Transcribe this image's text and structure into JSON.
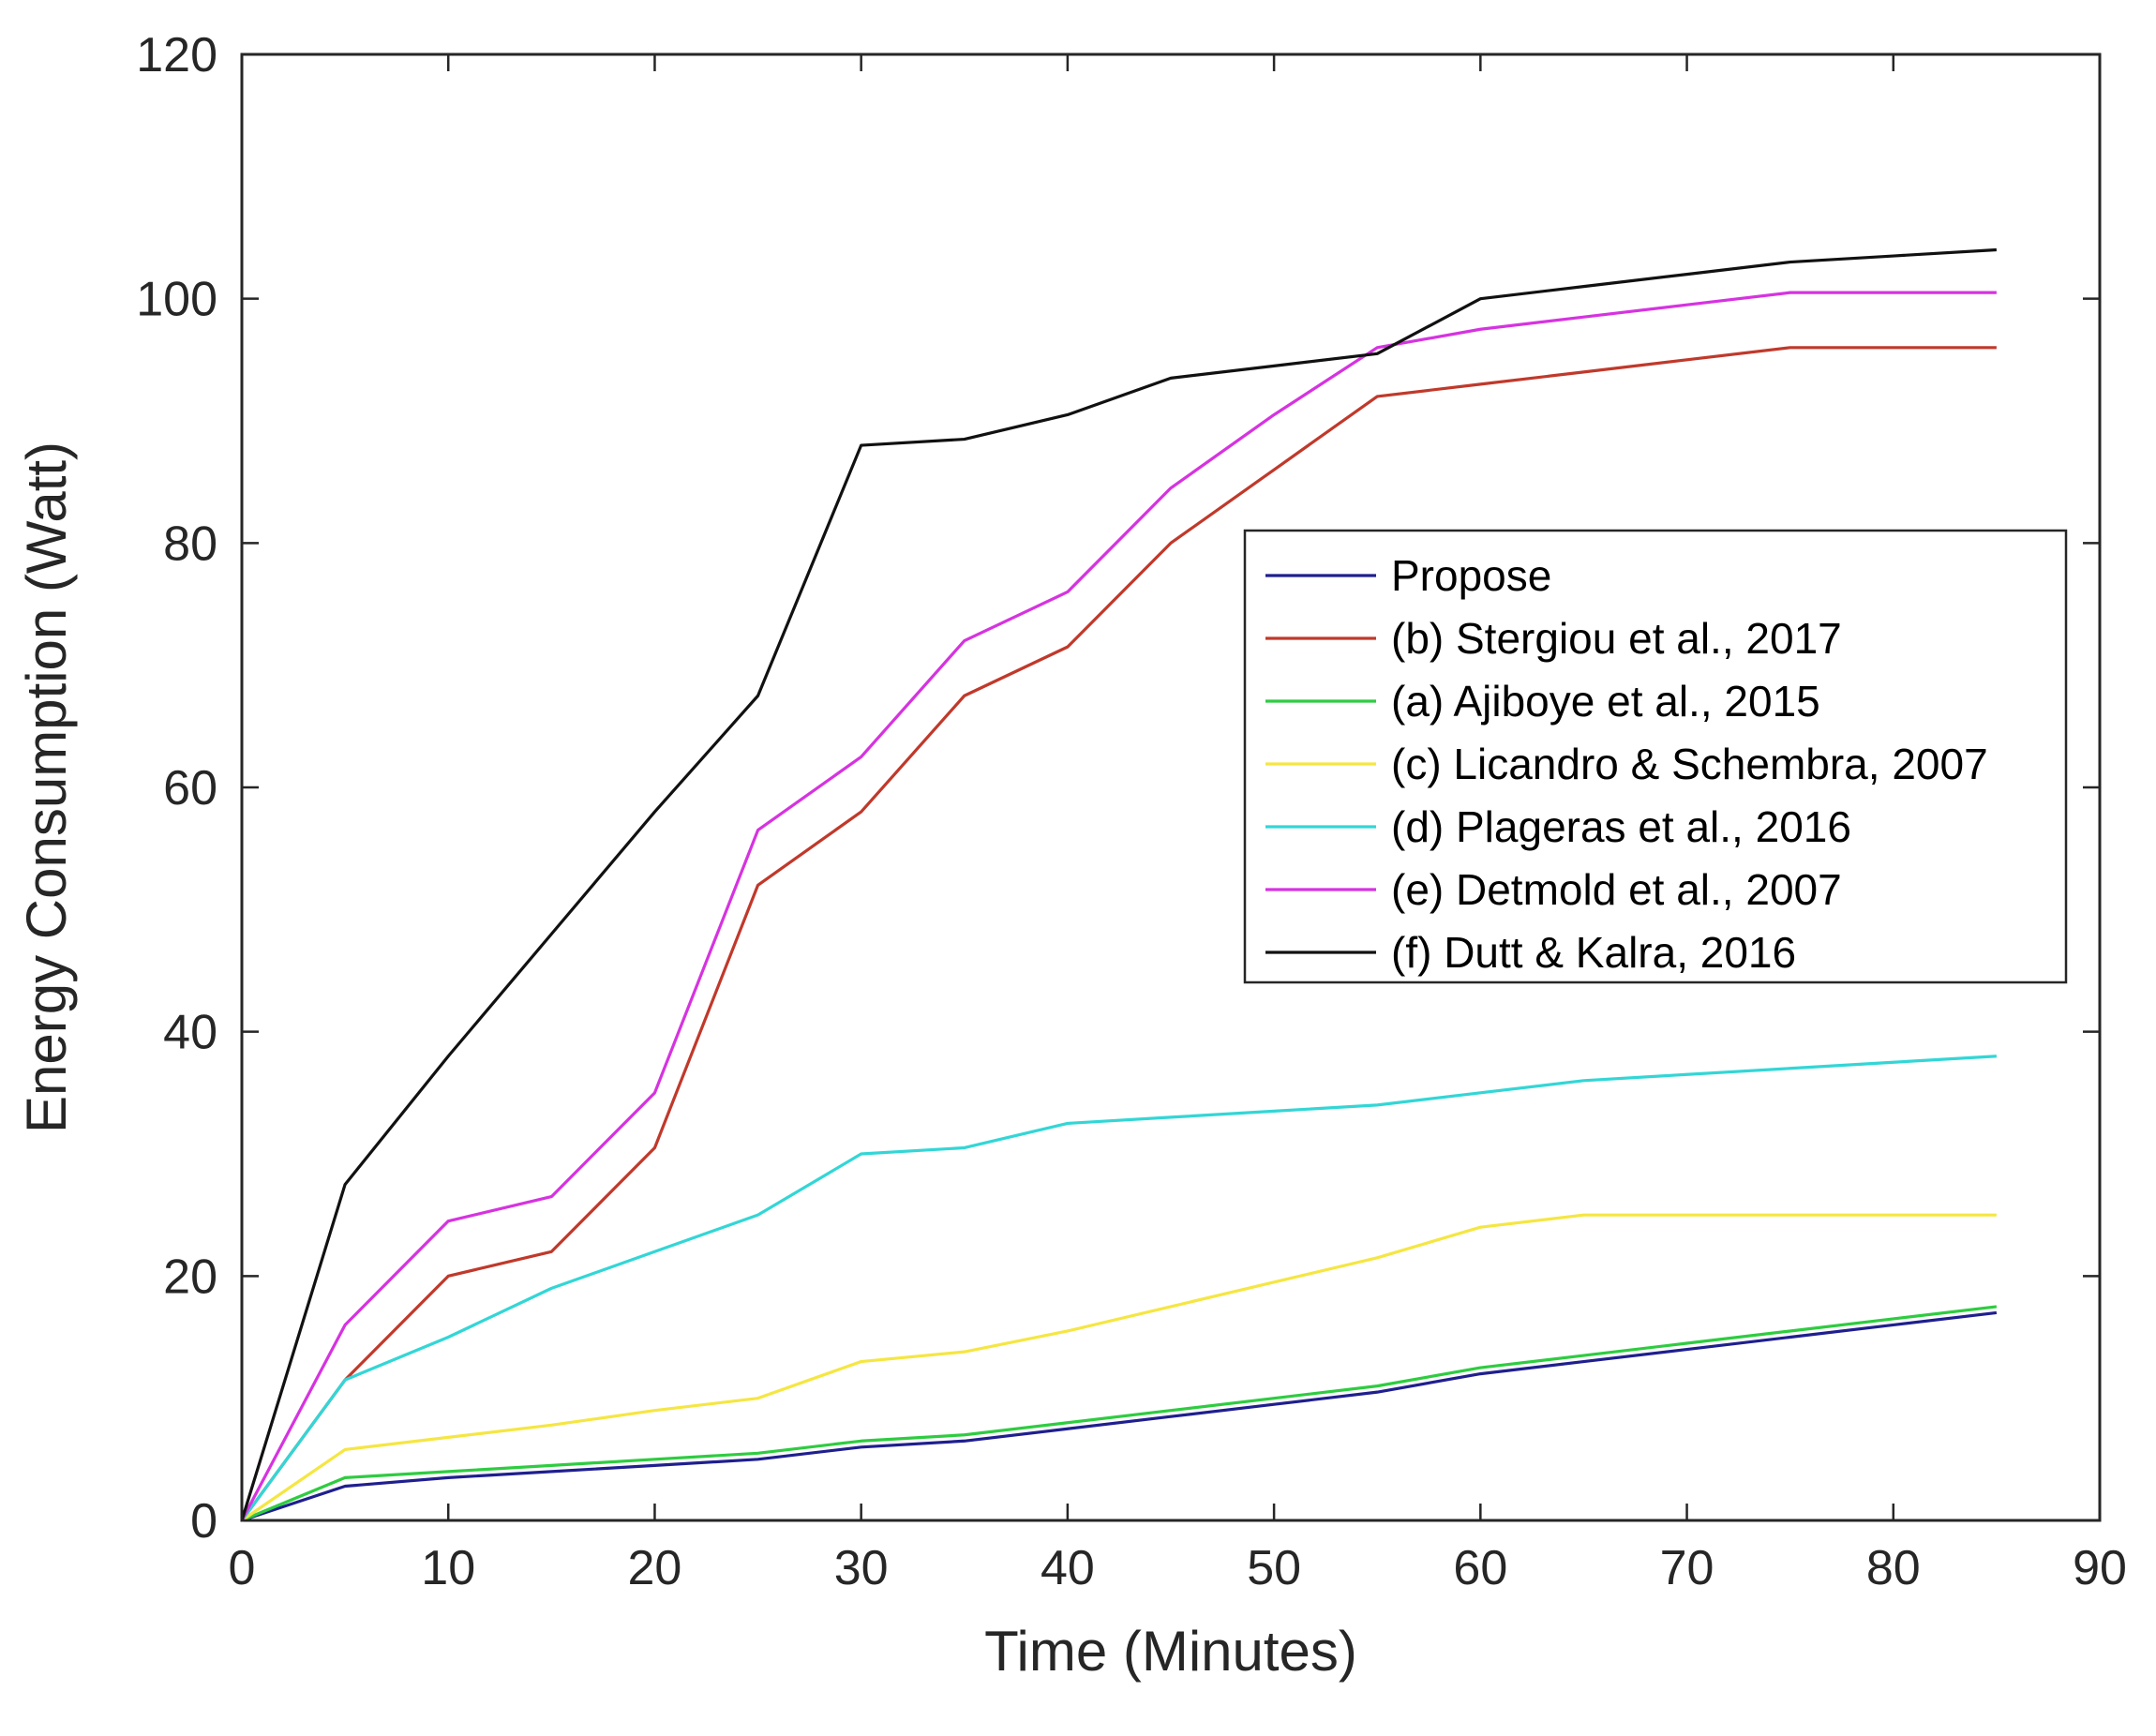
{
  "chart_data": {
    "type": "line",
    "title": "",
    "xlabel": "Time (Minutes)",
    "ylabel": "Energy Consumption (Watt)",
    "xlim": [
      0,
      90
    ],
    "ylim": [
      0,
      120
    ],
    "xticks": [
      0,
      10,
      20,
      30,
      40,
      50,
      60,
      70,
      80,
      90
    ],
    "yticks": [
      0,
      20,
      40,
      60,
      80,
      100,
      120
    ],
    "grid": false,
    "legend_position": "center-right",
    "x": [
      0,
      5,
      10,
      15,
      20,
      25,
      30,
      35,
      40,
      45,
      50,
      55,
      60,
      65,
      70,
      75,
      80,
      85
    ],
    "series": [
      {
        "name": "Propose",
        "color": "#1f1f8f",
        "values": [
          0,
          2.8,
          3.5,
          4,
          4.5,
          5,
          6,
          6.5,
          7.5,
          8.5,
          9.5,
          10.5,
          12,
          13,
          14,
          15,
          16,
          17
        ]
      },
      {
        "name": "(b) Stergiou et al., 2017",
        "color": "#c0392b",
        "values": [
          0,
          11.5,
          20,
          22,
          30.5,
          52,
          58,
          67.5,
          71.5,
          80,
          86,
          92,
          93,
          94,
          95,
          96,
          96,
          96
        ]
      },
      {
        "name": "(a) Ajiboye et al., 2015",
        "color": "#2ecc40",
        "values": [
          0,
          3.5,
          4,
          4.5,
          5,
          5.5,
          6.5,
          7,
          8,
          9,
          10,
          11,
          12.5,
          13.5,
          14.5,
          15.5,
          16.5,
          17.5
        ]
      },
      {
        "name": "(c) Licandro & Schembra, 2007",
        "color": "#f5e642",
        "values": [
          0,
          5.8,
          6.8,
          7.8,
          9,
          10,
          13,
          13.8,
          15.5,
          17.5,
          19.5,
          21.5,
          24,
          25,
          25,
          25,
          25,
          25
        ]
      },
      {
        "name": "(d) Plageras et al., 2016",
        "color": "#33d6d6",
        "values": [
          0,
          11.5,
          15,
          19,
          22,
          25,
          30,
          30.5,
          32.5,
          33,
          33.5,
          34,
          35,
          36,
          36.5,
          37,
          37.5,
          38
        ]
      },
      {
        "name": "(e) Detmold et al., 2007",
        "color": "#d633e0",
        "values": [
          0,
          16,
          24.5,
          26.5,
          35,
          56.5,
          62.5,
          72,
          76,
          84.5,
          90.5,
          96,
          97.5,
          98.5,
          99.5,
          100.5,
          100.5,
          100.5
        ]
      },
      {
        "name": "(f) Dutt & Kalra, 2016",
        "color": "#111111",
        "values": [
          0,
          27.5,
          38,
          48,
          58,
          67.5,
          88,
          88.5,
          90.5,
          93.5,
          94.5,
          95.5,
          100,
          101,
          102,
          103,
          103.5,
          104
        ]
      }
    ]
  }
}
